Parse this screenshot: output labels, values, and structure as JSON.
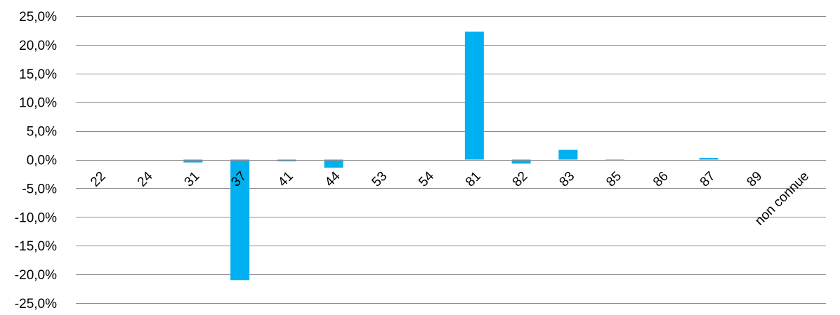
{
  "chart_data": {
    "type": "bar",
    "title": "",
    "xlabel": "",
    "ylabel": "",
    "categories": [
      "22",
      "24",
      "31",
      "37",
      "41",
      "44",
      "53",
      "54",
      "81",
      "82",
      "83",
      "85",
      "86",
      "87",
      "89",
      "non connue"
    ],
    "values": [
      0.0,
      0.0,
      -0.5,
      -21.0,
      -0.3,
      -1.4,
      0.0,
      0.0,
      22.3,
      -0.7,
      1.7,
      -0.1,
      0.0,
      0.3,
      0.0,
      0.0
    ],
    "ylim": [
      -25,
      25
    ],
    "yticks": [
      25,
      20,
      15,
      10,
      5,
      0,
      -5,
      -10,
      -15,
      -20,
      -25
    ],
    "ytick_labels": [
      "25,0%",
      "20,0%",
      "15,0%",
      "10,0%",
      "5,0%",
      "0,0%",
      "-5,0%",
      "-10,0%",
      "-15,0%",
      "-20,0%",
      "-25,0%"
    ],
    "grid": true,
    "legend": "none",
    "bar_color": "#00b0f0"
  }
}
